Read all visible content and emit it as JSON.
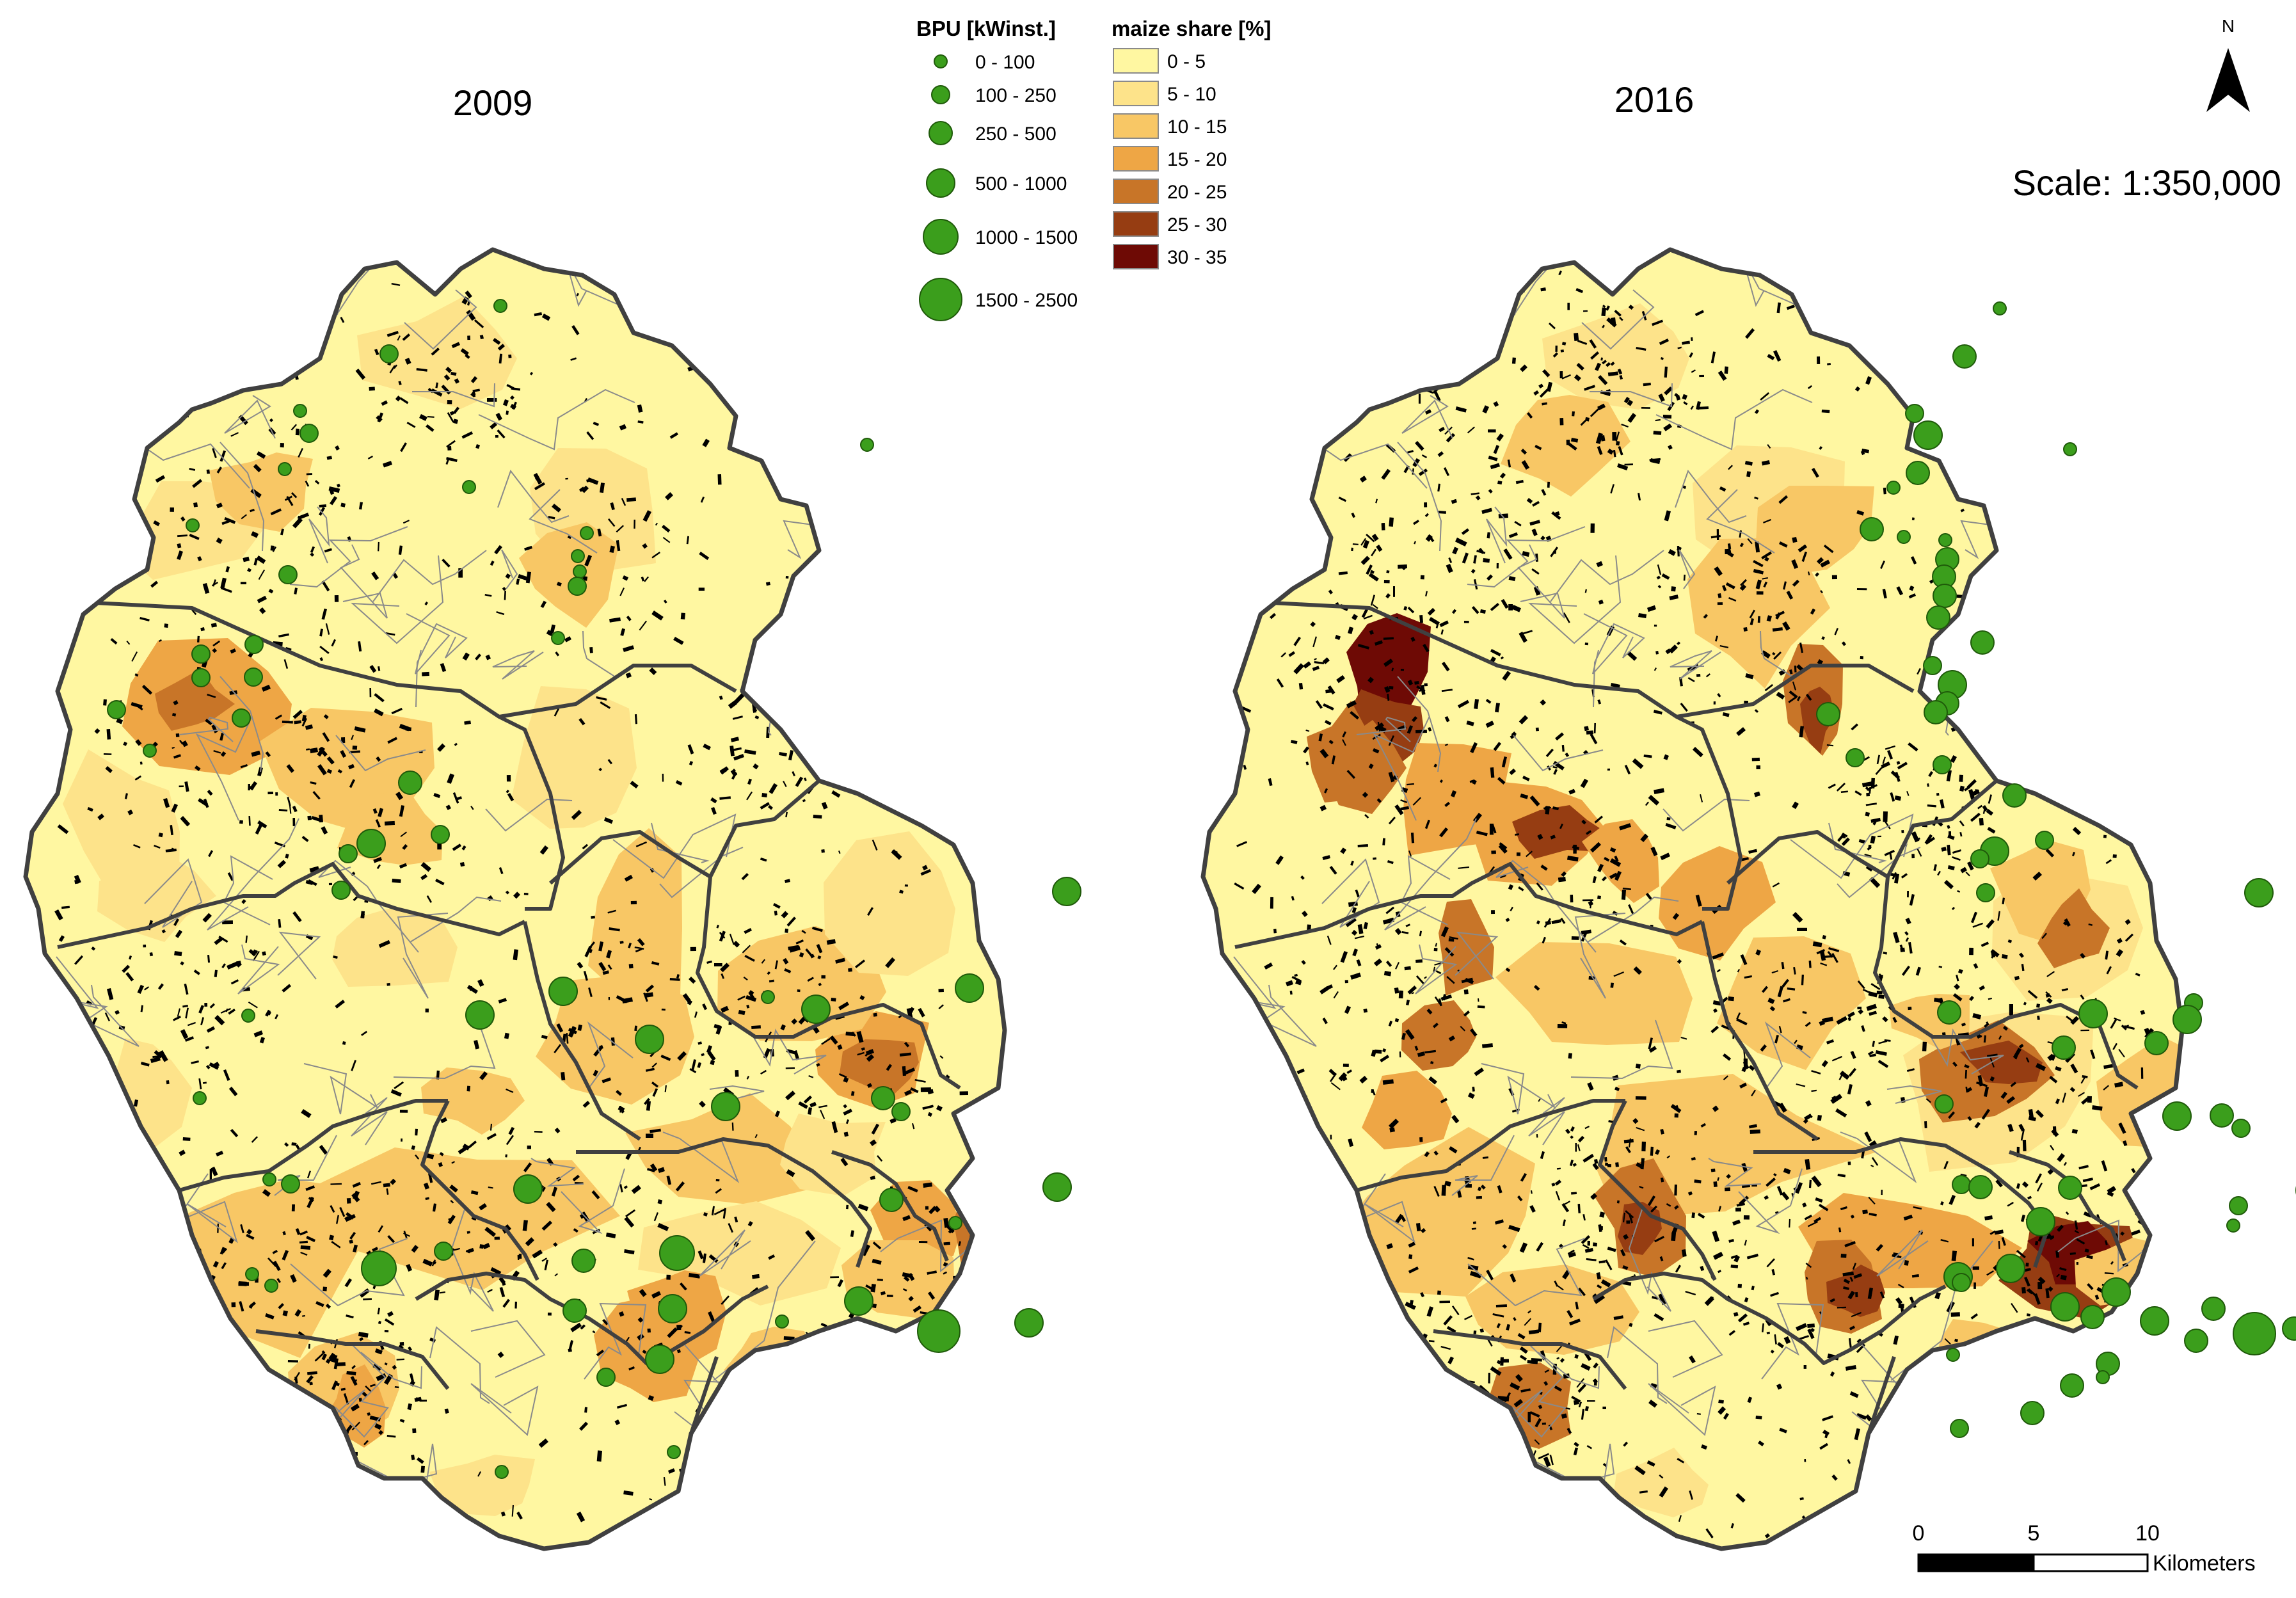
{
  "maps": [
    {
      "year_label": "2009"
    },
    {
      "year_label": "2016"
    }
  ],
  "legend": {
    "bpu": {
      "title": "BPU [kWinst.]",
      "classes": [
        "0 - 100",
        "100 - 250",
        "250 - 500",
        "500 - 1000",
        "1000 - 1500",
        "1500 - 2500"
      ]
    },
    "maize": {
      "title": "maize share [%]",
      "classes": [
        {
          "label": "0 - 5",
          "color": "#fff7a1"
        },
        {
          "label": "5 - 10",
          "color": "#fde38a"
        },
        {
          "label": "10 - 15",
          "color": "#f8c765"
        },
        {
          "label": "15 - 20",
          "color": "#eea645"
        },
        {
          "label": "20 - 25",
          "color": "#c87528"
        },
        {
          "label": "25 - 30",
          "color": "#963d12"
        },
        {
          "label": "30 - 35",
          "color": "#6e0a05"
        }
      ]
    }
  },
  "colors": {
    "plant_fill": "#3b9e1c",
    "plant_stroke": "#1f5a0a",
    "district_border": "#404040",
    "municipality_border": "#8a8a8a",
    "maize_field": "#000000"
  },
  "north_arrow": {
    "label": "N",
    "icon": "north-arrow-icon"
  },
  "scale_text": "Scale: 1:350,000",
  "scale_bar": {
    "ticks": [
      "0",
      "5",
      "10"
    ],
    "unit": "Kilometers"
  }
}
